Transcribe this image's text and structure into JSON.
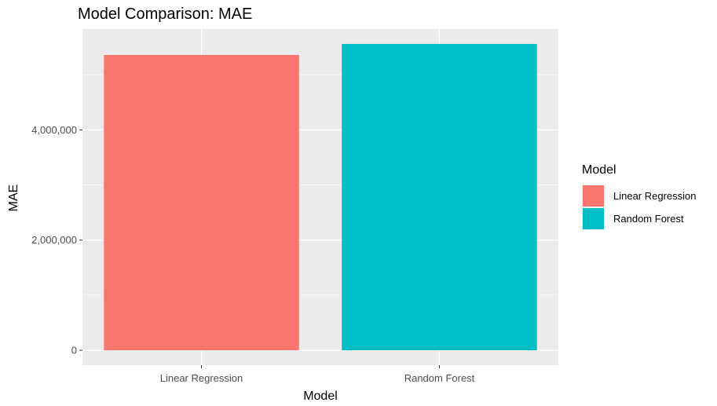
{
  "chart_data": {
    "type": "bar",
    "title": "Model Comparison: MAE",
    "xlabel": "Model",
    "ylabel": "MAE",
    "categories": [
      "Linear Regression",
      "Random Forest"
    ],
    "values": [
      5360000,
      5560000
    ],
    "colors": [
      "#F8766D",
      "#00BFC4"
    ],
    "ylim": [
      -270000,
      5830000
    ],
    "yticks": [
      0,
      2000000,
      4000000
    ],
    "ytick_labels": [
      "0",
      "2,000,000",
      "4,000,000"
    ],
    "grid": true,
    "legend": {
      "title": "Model",
      "placement": "right",
      "entries": [
        "Linear Regression",
        "Random Forest"
      ]
    },
    "panel_background": "#EBEBEB",
    "gridline_color": "#FFFFFF"
  }
}
